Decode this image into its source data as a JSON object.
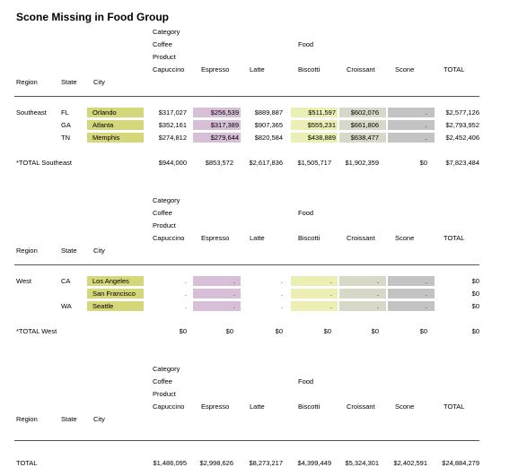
{
  "title": "Scone Missing in Food Group",
  "header": {
    "category": "Category",
    "coffee": "Coffee",
    "product": "Product",
    "food": "Food",
    "region": "Region",
    "state": "State",
    "city": "City",
    "columns": [
      "Capuccino",
      "Espresso",
      "Latte",
      "Biscotti",
      "Croissant",
      "Scone",
      "TOTAL"
    ]
  },
  "southeast": {
    "region": "Southeast",
    "rows": [
      {
        "state": "FL",
        "city": "Orlando",
        "values": [
          "$317,027",
          "$256,539",
          "$889,887",
          "$511,597",
          "$602,076",
          ".",
          "$2,577,126"
        ]
      },
      {
        "state": "GA",
        "city": "Atlanta",
        "values": [
          "$352,161",
          "$317,389",
          "$907,365",
          "$555,231",
          "$661,806",
          ".",
          "$2,793,952"
        ]
      },
      {
        "state": "TN",
        "city": "Memphis",
        "values": [
          "$274,812",
          "$279,644",
          "$820,584",
          "$438,889",
          "$638,477",
          ".",
          "$2,452,406"
        ]
      }
    ],
    "total_label": "*TOTAL Southeast",
    "totals": [
      "$944,000",
      "$853,572",
      "$2,617,836",
      "$1,505,717",
      "$1,902,359",
      "$0",
      "$7,823,484"
    ]
  },
  "west": {
    "region": "West",
    "rows": [
      {
        "state": "CA",
        "city": "Los Angeles",
        "values": [
          ".",
          ".",
          ".",
          ".",
          ".",
          ".",
          "$0"
        ]
      },
      {
        "state": "",
        "city": "San Francisco",
        "values": [
          ".",
          ".",
          ".",
          ".",
          ".",
          ".",
          "$0"
        ]
      },
      {
        "state": "WA",
        "city": "Seattle",
        "values": [
          ".",
          ".",
          ".",
          ".",
          ".",
          ".",
          "$0"
        ]
      }
    ],
    "total_label": "*TOTAL West",
    "totals": [
      "$0",
      "$0",
      "$0",
      "$0",
      "$0",
      "$0",
      "$0"
    ]
  },
  "grand": {
    "label": "TOTAL",
    "totals": [
      "$1,486,095",
      "$2,998,626",
      "$8,273,217",
      "$4,399,449",
      "$5,324,301",
      "$2,402,591",
      "$24,884,279"
    ]
  }
}
